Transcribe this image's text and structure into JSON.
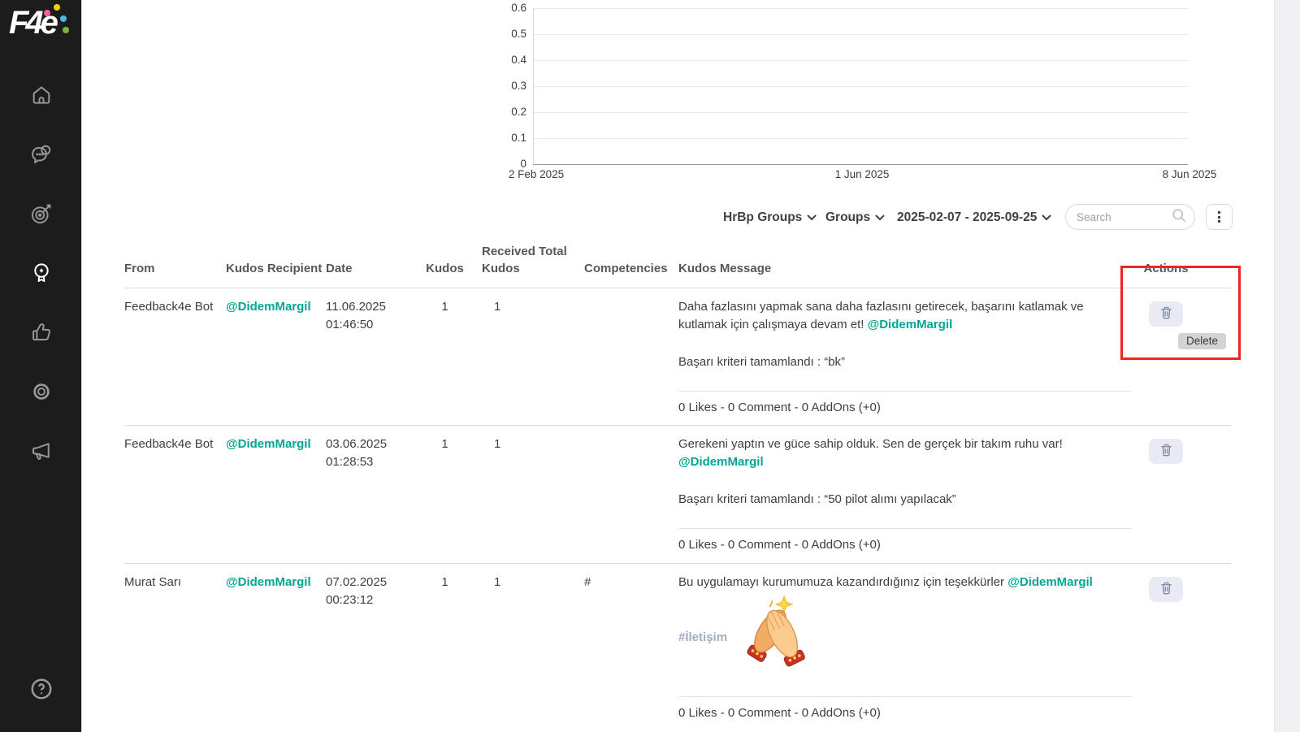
{
  "brand": {
    "logo_text": "F4e",
    "dot_colors": [
      "#ff5ca8",
      "#ffcc00",
      "#45b7e8",
      "#7cb342"
    ]
  },
  "sidebar": {
    "items": [
      {
        "id": "home",
        "icon": "home-icon",
        "active": false
      },
      {
        "id": "chat",
        "icon": "chat-bubbles-icon",
        "active": false
      },
      {
        "id": "goals",
        "icon": "target-icon",
        "active": false
      },
      {
        "id": "kudos",
        "icon": "award-badge-icon",
        "active": true
      },
      {
        "id": "likes",
        "icon": "thumbs-up-icon",
        "active": false
      },
      {
        "id": "settings",
        "icon": "gear-icon",
        "active": false
      },
      {
        "id": "announcements",
        "icon": "megaphone-icon",
        "active": false
      }
    ],
    "help_icon": "help-circle-icon"
  },
  "chart_data": {
    "type": "line",
    "title": "",
    "x_labels": [
      "2 Feb 2025",
      "1 Jun 2025",
      "8 Jun 2025"
    ],
    "y_ticks": [
      0,
      0.1,
      0.2,
      0.3,
      0.4,
      0.5,
      0.6
    ],
    "ylim": [
      0,
      0.6
    ],
    "series": [],
    "grid": "horizontal",
    "legend": "none",
    "note": "empty plot area, no data points rendered"
  },
  "filters": {
    "hrbp_groups_label": "HrBp Groups",
    "groups_label": "Groups",
    "date_range_label": "2025-02-07 - 2025-09-25",
    "search_placeholder": "Search"
  },
  "table": {
    "headers": {
      "from": "From",
      "recipient": "Kudos Recipient",
      "date": "Date",
      "kudos": "Kudos",
      "received_line1": "Received Total",
      "received_line2": "Kudos",
      "competencies": "Competencies",
      "message": "Kudos Message",
      "actions": "Actions"
    },
    "rows": [
      {
        "from": "Feedback4e Bot",
        "recipient": "@DidemMargil",
        "date": "11.06.2025",
        "time": "01:46:50",
        "kudos": "1",
        "received_total": "1",
        "competencies": "",
        "message": "Daha fazlasını yapmak sana daha fazlasını getirecek, başarını katlamak ve kutlamak için çalışmaya devam et!",
        "mention": "@DidemMargil",
        "criteria": "Başarı kriteri tamamlandı : “bk”",
        "stats": "0 Likes - 0 Comment - 0 AddOns (+0)"
      },
      {
        "from": "Feedback4e Bot",
        "recipient": "@DidemMargil",
        "date": "03.06.2025",
        "time": "01:28:53",
        "kudos": "1",
        "received_total": "1",
        "competencies": "",
        "message": "Gerekeni yaptın ve güce sahip olduk. Sen de gerçek bir takım ruhu var!",
        "mention": "@DidemMargil",
        "criteria": "Başarı kriteri tamamlandı : “50 pilot alımı yapılacak”",
        "stats": "0 Likes - 0 Comment - 0 AddOns (+0)"
      },
      {
        "from": "Murat Sarı",
        "recipient": "@DidemMargil",
        "date": "07.02.2025",
        "time": "00:23:12",
        "kudos": "1",
        "received_total": "1",
        "competencies": "#",
        "message": "Bu uygulamayı kurumumuza kazandırdığınız için teşekkürler",
        "mention": "@DidemMargil",
        "tag": "#İletişim",
        "emoji": "clapping-hands",
        "stats": "0 Likes - 0 Comment - 0 AddOns (+0)"
      }
    ]
  },
  "tooltip": {
    "delete_label": "Delete"
  },
  "colors": {
    "accent_teal": "#00a693",
    "highlight_red": "#ee2525",
    "sidebar_bg": "#1c1c1c",
    "trash_button_bg": "#e9eaf3",
    "right_strip_bg": "#f1f1f4"
  }
}
